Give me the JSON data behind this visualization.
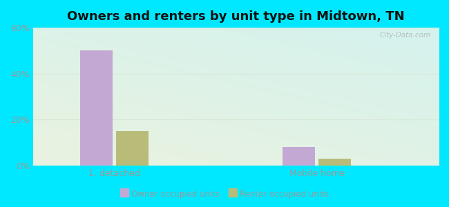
{
  "title": "Owners and renters by unit type in Midtown, TN",
  "categories": [
    "1, detached",
    "Mobile home"
  ],
  "owner_values": [
    50,
    8
  ],
  "renter_values": [
    15,
    3
  ],
  "owner_color": "#c4a8d4",
  "renter_color": "#b8bc78",
  "ylim": [
    0,
    60
  ],
  "yticks": [
    0,
    20,
    40,
    60
  ],
  "ytick_labels": [
    "0%",
    "20%",
    "40%",
    "60%"
  ],
  "background_outer": "#00e8ff",
  "title_fontsize": 13,
  "legend_label_owner": "Owner occupied units",
  "legend_label_renter": "Renter occupied units",
  "bar_width": 0.32,
  "group_positions": [
    1.0,
    3.0
  ],
  "xlim": [
    0.2,
    4.2
  ],
  "watermark": "City-Data.com",
  "tick_color": "#999999",
  "grid_color": "#d8e8d8"
}
